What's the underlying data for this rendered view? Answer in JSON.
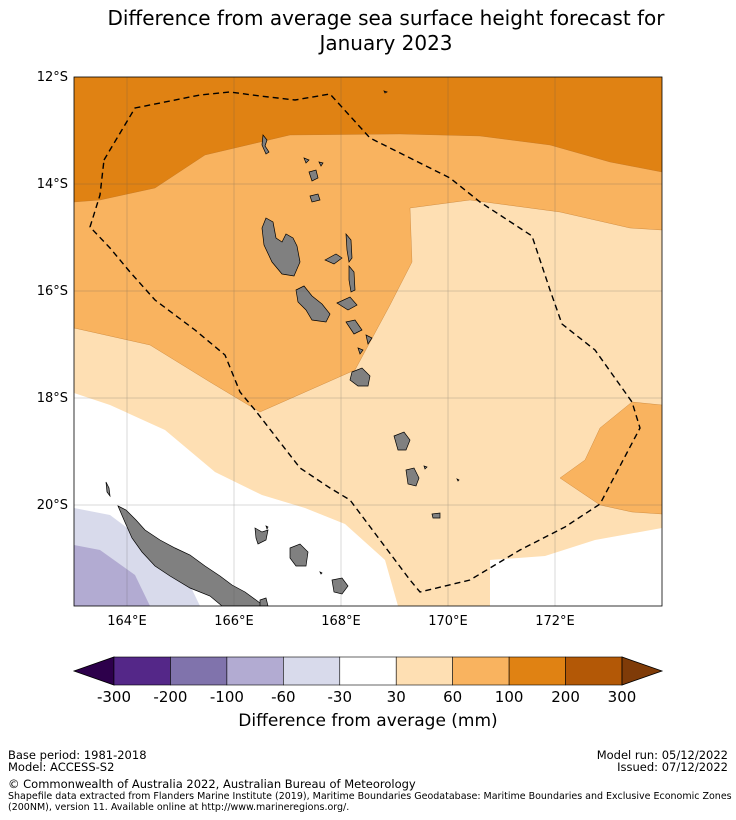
{
  "title_line1": "Difference from average sea surface height forecast for",
  "title_line2": "January 2023",
  "map": {
    "lat_labels": [
      "12°S",
      "14°S",
      "16°S",
      "18°S",
      "20°S"
    ],
    "lon_labels": [
      "164°E",
      "166°E",
      "168°E",
      "170°E",
      "172°E"
    ],
    "colors": {
      "band_100_200": "#e08213",
      "band_60_100": "#f9b35f",
      "band_30_60": "#fedfb3",
      "band_neutral": "#ffffff",
      "band_m60_m30": "#d8daeb",
      "band_m100_m60": "#b2abd2",
      "land": "#808080",
      "eez_line": "#000000"
    }
  },
  "colorbar": {
    "ticks": [
      "-300",
      "-200",
      "-100",
      "-60",
      "-30",
      "30",
      "60",
      "100",
      "200",
      "300"
    ],
    "colors": [
      "#2d004b",
      "#542788",
      "#8073ac",
      "#b2abd2",
      "#d8daeb",
      "#ffffff",
      "#fedfb3",
      "#f9b35f",
      "#e08213",
      "#b35806",
      "#7f3b08"
    ],
    "label": "Difference from average (mm)"
  },
  "footer": {
    "base_period": "Base period: 1981-2018",
    "model": "Model: ACCESS-S2",
    "model_run": "Model run: 05/12/2022",
    "issued": "Issued: 07/12/2022",
    "copyright": "© Commonwealth of Australia 2022, Australian Bureau of Meteorology",
    "shapefile_line1": "Shapefile data extracted from Flanders Marine Institute (2019), Maritime Boundaries Geodatabase: Maritime Boundaries and Exclusive Economic Zones",
    "shapefile_line2": "(200NM), version 11. Available online at http://www.marineregions.org/."
  }
}
